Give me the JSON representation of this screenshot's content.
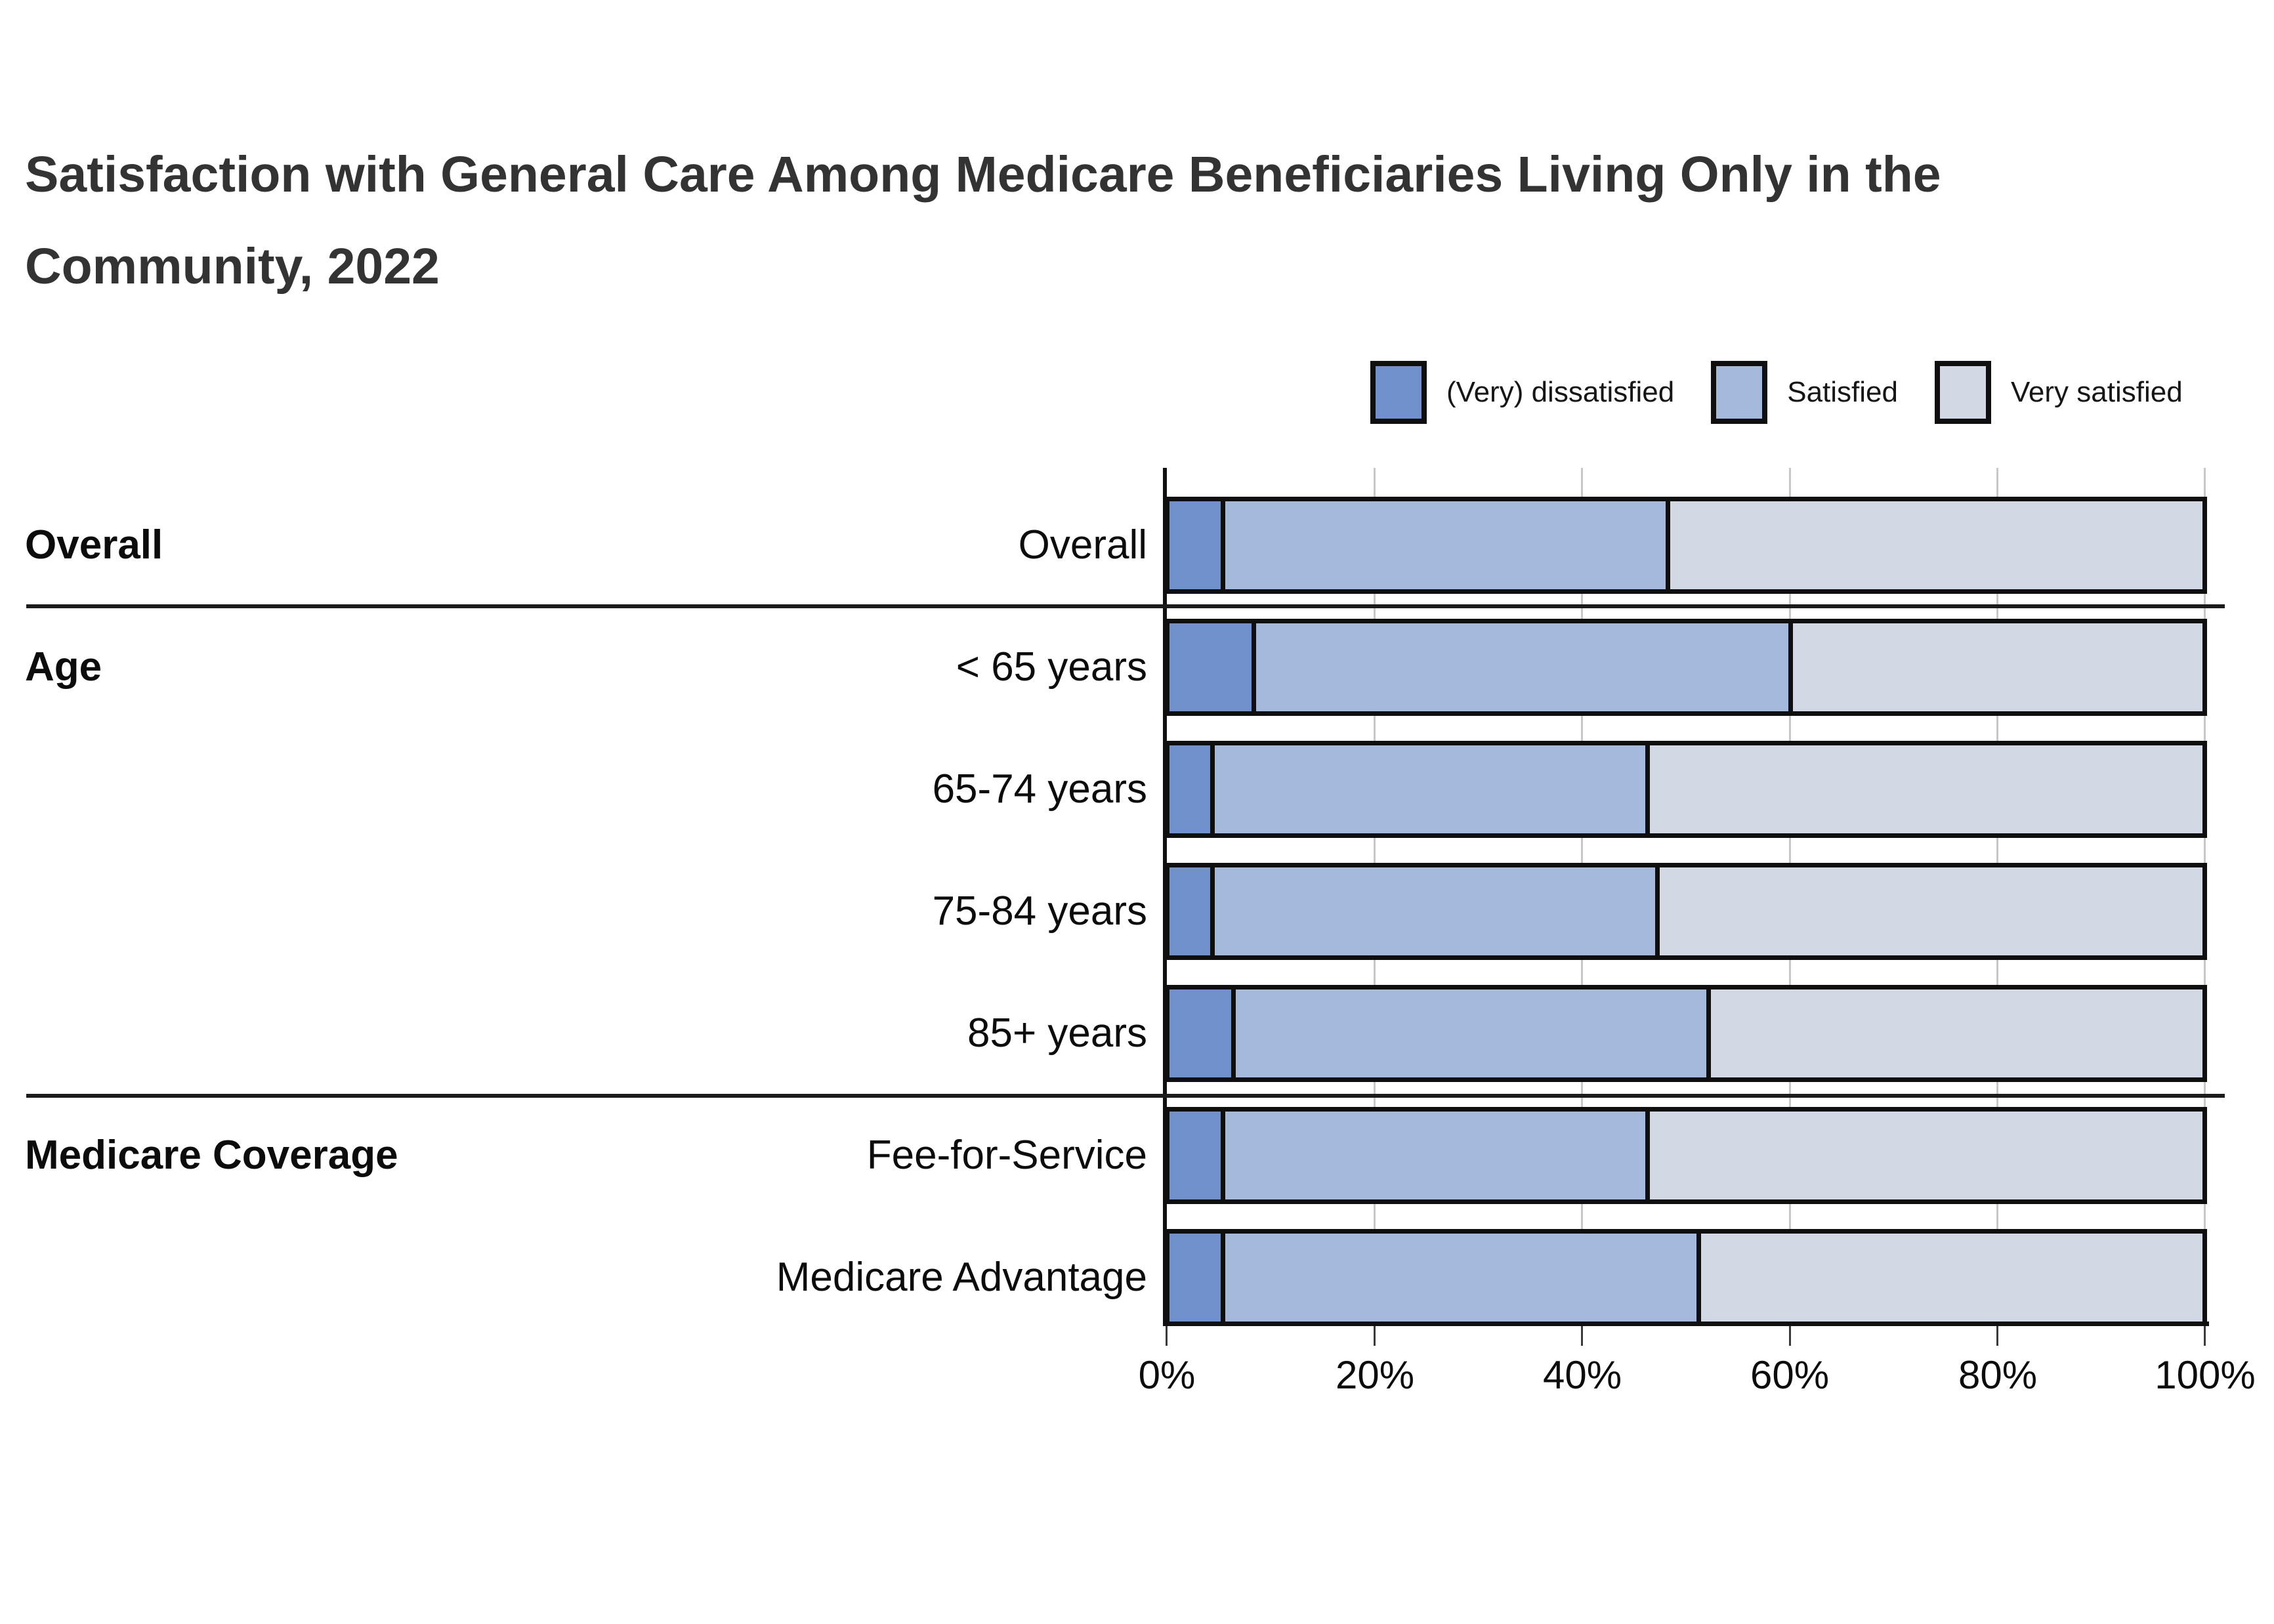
{
  "title": {
    "line1": "Satisfaction with General Care Among Medicare Beneficiaries Living Only in the",
    "line2": "Community, 2022"
  },
  "chart_data": {
    "type": "bar",
    "orientation": "horizontal-stacked",
    "unit": "percent",
    "xlim": [
      0,
      100
    ],
    "x_ticks": [
      "0%",
      "20%",
      "40%",
      "60%",
      "80%",
      "100%"
    ],
    "legend": [
      "(Very) dissatisfied",
      "Satisfied",
      "Very satisfied"
    ],
    "legend_colors": [
      "#7191cc",
      "#a5b9dc",
      "#d3d9e4"
    ],
    "grid": "vertical, light gray at 20% intervals",
    "legend_position": "top-right",
    "groups": [
      {
        "name": "Overall",
        "rows": [
          "Overall"
        ]
      },
      {
        "name": "Age",
        "rows": [
          "< 65 years",
          "65-74 years",
          "75-84 years",
          "85+ years"
        ]
      },
      {
        "name": "Medicare Coverage",
        "rows": [
          "Fee-for-Service",
          "Medicare Advantage"
        ]
      }
    ],
    "rows": [
      {
        "label": "Overall",
        "group": "Overall",
        "values": [
          5,
          43,
          52
        ]
      },
      {
        "label": "< 65 years",
        "group": "Age",
        "values": [
          8,
          52,
          40
        ]
      },
      {
        "label": "65-74 years",
        "group": "Age",
        "values": [
          4,
          42,
          54
        ]
      },
      {
        "label": "75-84 years",
        "group": "Age",
        "values": [
          4,
          43,
          53
        ]
      },
      {
        "label": "85+ years",
        "group": "Age",
        "values": [
          6,
          46,
          48
        ]
      },
      {
        "label": "Fee-for-Service",
        "group": "Medicare Coverage",
        "values": [
          5,
          41,
          54
        ]
      },
      {
        "label": "Medicare Advantage",
        "group": "Medicare Coverage",
        "values": [
          5,
          46,
          49
        ]
      }
    ]
  },
  "colors": {
    "bar_border": "#0f0f0f",
    "gridline": "#c8c8c8",
    "separator": "#1c1c1c",
    "title_text": "#333333",
    "label_text": "#0c0c0c"
  }
}
